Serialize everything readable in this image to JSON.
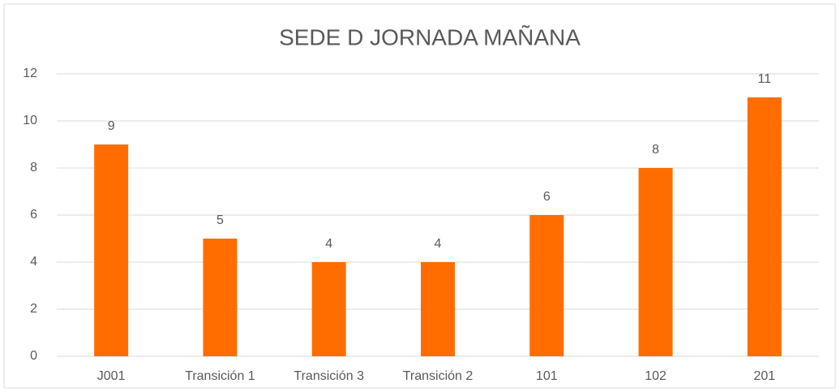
{
  "chart_data": {
    "type": "bar",
    "title": "SEDE D JORNADA MAÑANA",
    "categories": [
      "J001",
      "Transición 1",
      "Transición 3",
      "Transición 2",
      "101",
      "102",
      "201"
    ],
    "values": [
      9,
      5,
      4,
      4,
      6,
      8,
      11
    ],
    "color": "#ff6d00",
    "ylim": [
      0,
      12
    ],
    "yticks": [
      0,
      2,
      4,
      6,
      8,
      10,
      12
    ],
    "grid": true
  }
}
